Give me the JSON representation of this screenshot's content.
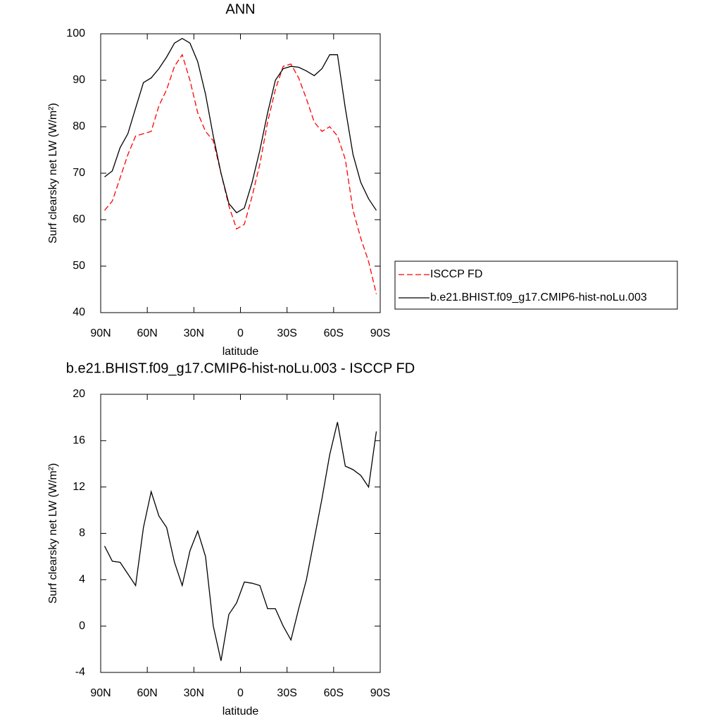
{
  "chart_data": [
    {
      "type": "line",
      "title": "ANN",
      "xlabel": "latitude",
      "ylabel": "Surf clearsky net LW (W/m²)",
      "xlim": [
        90,
        -90
      ],
      "xticks": [
        {
          "value": 90,
          "label": "90N"
        },
        {
          "value": 60,
          "label": "60N"
        },
        {
          "value": 30,
          "label": "30N"
        },
        0,
        {
          "value": -30,
          "label": "30S"
        },
        {
          "value": -60,
          "label": "60S"
        },
        {
          "value": -90,
          "label": "90S"
        }
      ],
      "ylim": [
        40,
        100
      ],
      "yticks": [
        40,
        50,
        60,
        70,
        80,
        90,
        100
      ],
      "legend": "outside-right",
      "x": [
        87.5,
        82.5,
        77.5,
        72.5,
        67.5,
        62.5,
        57.5,
        52.5,
        47.5,
        42.5,
        37.5,
        32.5,
        27.5,
        22.5,
        17.5,
        12.5,
        7.5,
        2.5,
        -2.5,
        -7.5,
        -12.5,
        -17.5,
        -22.5,
        -27.5,
        -32.5,
        -37.5,
        -42.5,
        -47.5,
        -52.5,
        -57.5,
        -62.5,
        -67.5,
        -72.5,
        -77.5,
        -82.5,
        -87.5
      ],
      "series": [
        {
          "name": "ISCCP FD",
          "color": "#ff0000",
          "dashed": true,
          "values": [
            62,
            64,
            69,
            74,
            78,
            78.5,
            79,
            84.5,
            88,
            93,
            95.5,
            90,
            83,
            79,
            77,
            70,
            63,
            58,
            59,
            65,
            72,
            81,
            88,
            93,
            93.5,
            90.5,
            86,
            81,
            79,
            80,
            78,
            73,
            62,
            56,
            51,
            44
          ]
        },
        {
          "name": "b.e21.BHIST.f09_g17.CMIP6-hist-noLu.003",
          "color": "#000000",
          "dashed": false,
          "values": [
            69.2,
            70.5,
            75.5,
            78.5,
            84,
            89.5,
            90.5,
            92.5,
            95,
            98,
            99,
            98,
            94,
            87,
            78,
            70,
            63.5,
            61.5,
            62.5,
            68,
            75,
            83,
            90,
            92.5,
            93,
            92.8,
            92,
            91,
            92.5,
            95.5,
            95.5,
            84,
            74,
            68,
            64.5,
            62
          ]
        }
      ]
    },
    {
      "type": "line",
      "title": "b.e21.BHIST.f09_g17.CMIP6-hist-noLu.003 - ISCCP FD",
      "xlabel": "latitude",
      "ylabel": "Surf clearsky net LW (W/m²)",
      "xlim": [
        90,
        -90
      ],
      "xticks": [
        {
          "value": 90,
          "label": "90N"
        },
        {
          "value": 60,
          "label": "60N"
        },
        {
          "value": 30,
          "label": "30N"
        },
        0,
        {
          "value": -30,
          "label": "30S"
        },
        {
          "value": -60,
          "label": "60S"
        },
        {
          "value": -90,
          "label": "90S"
        }
      ],
      "ylim": [
        -4,
        20
      ],
      "yticks": [
        -4,
        0,
        4,
        8,
        12,
        16,
        20
      ],
      "color": "#000000",
      "x": [
        87.5,
        82.5,
        77.5,
        72.5,
        67.5,
        62.5,
        57.5,
        52.5,
        47.5,
        42.5,
        37.5,
        32.5,
        27.5,
        22.5,
        17.5,
        12.5,
        7.5,
        2.5,
        -2.5,
        -7.5,
        -12.5,
        -17.5,
        -22.5,
        -27.5,
        -32.5,
        -37.5,
        -42.5,
        -47.5,
        -52.5,
        -57.5,
        -62.5,
        -67.5,
        -72.5,
        -77.5,
        -82.5,
        -87.5
      ],
      "values": [
        6.9,
        5.6,
        5.5,
        4.5,
        3.5,
        8.5,
        11.6,
        9.5,
        8.5,
        5.5,
        3.5,
        6.5,
        8.2,
        6,
        0,
        -3,
        1,
        2,
        3.8,
        3.7,
        3.5,
        1.5,
        1.5,
        0,
        -1.2,
        1.5,
        4,
        7.5,
        11,
        14.8,
        17.6,
        13.8,
        13.5,
        13,
        12,
        16.8
      ]
    }
  ]
}
